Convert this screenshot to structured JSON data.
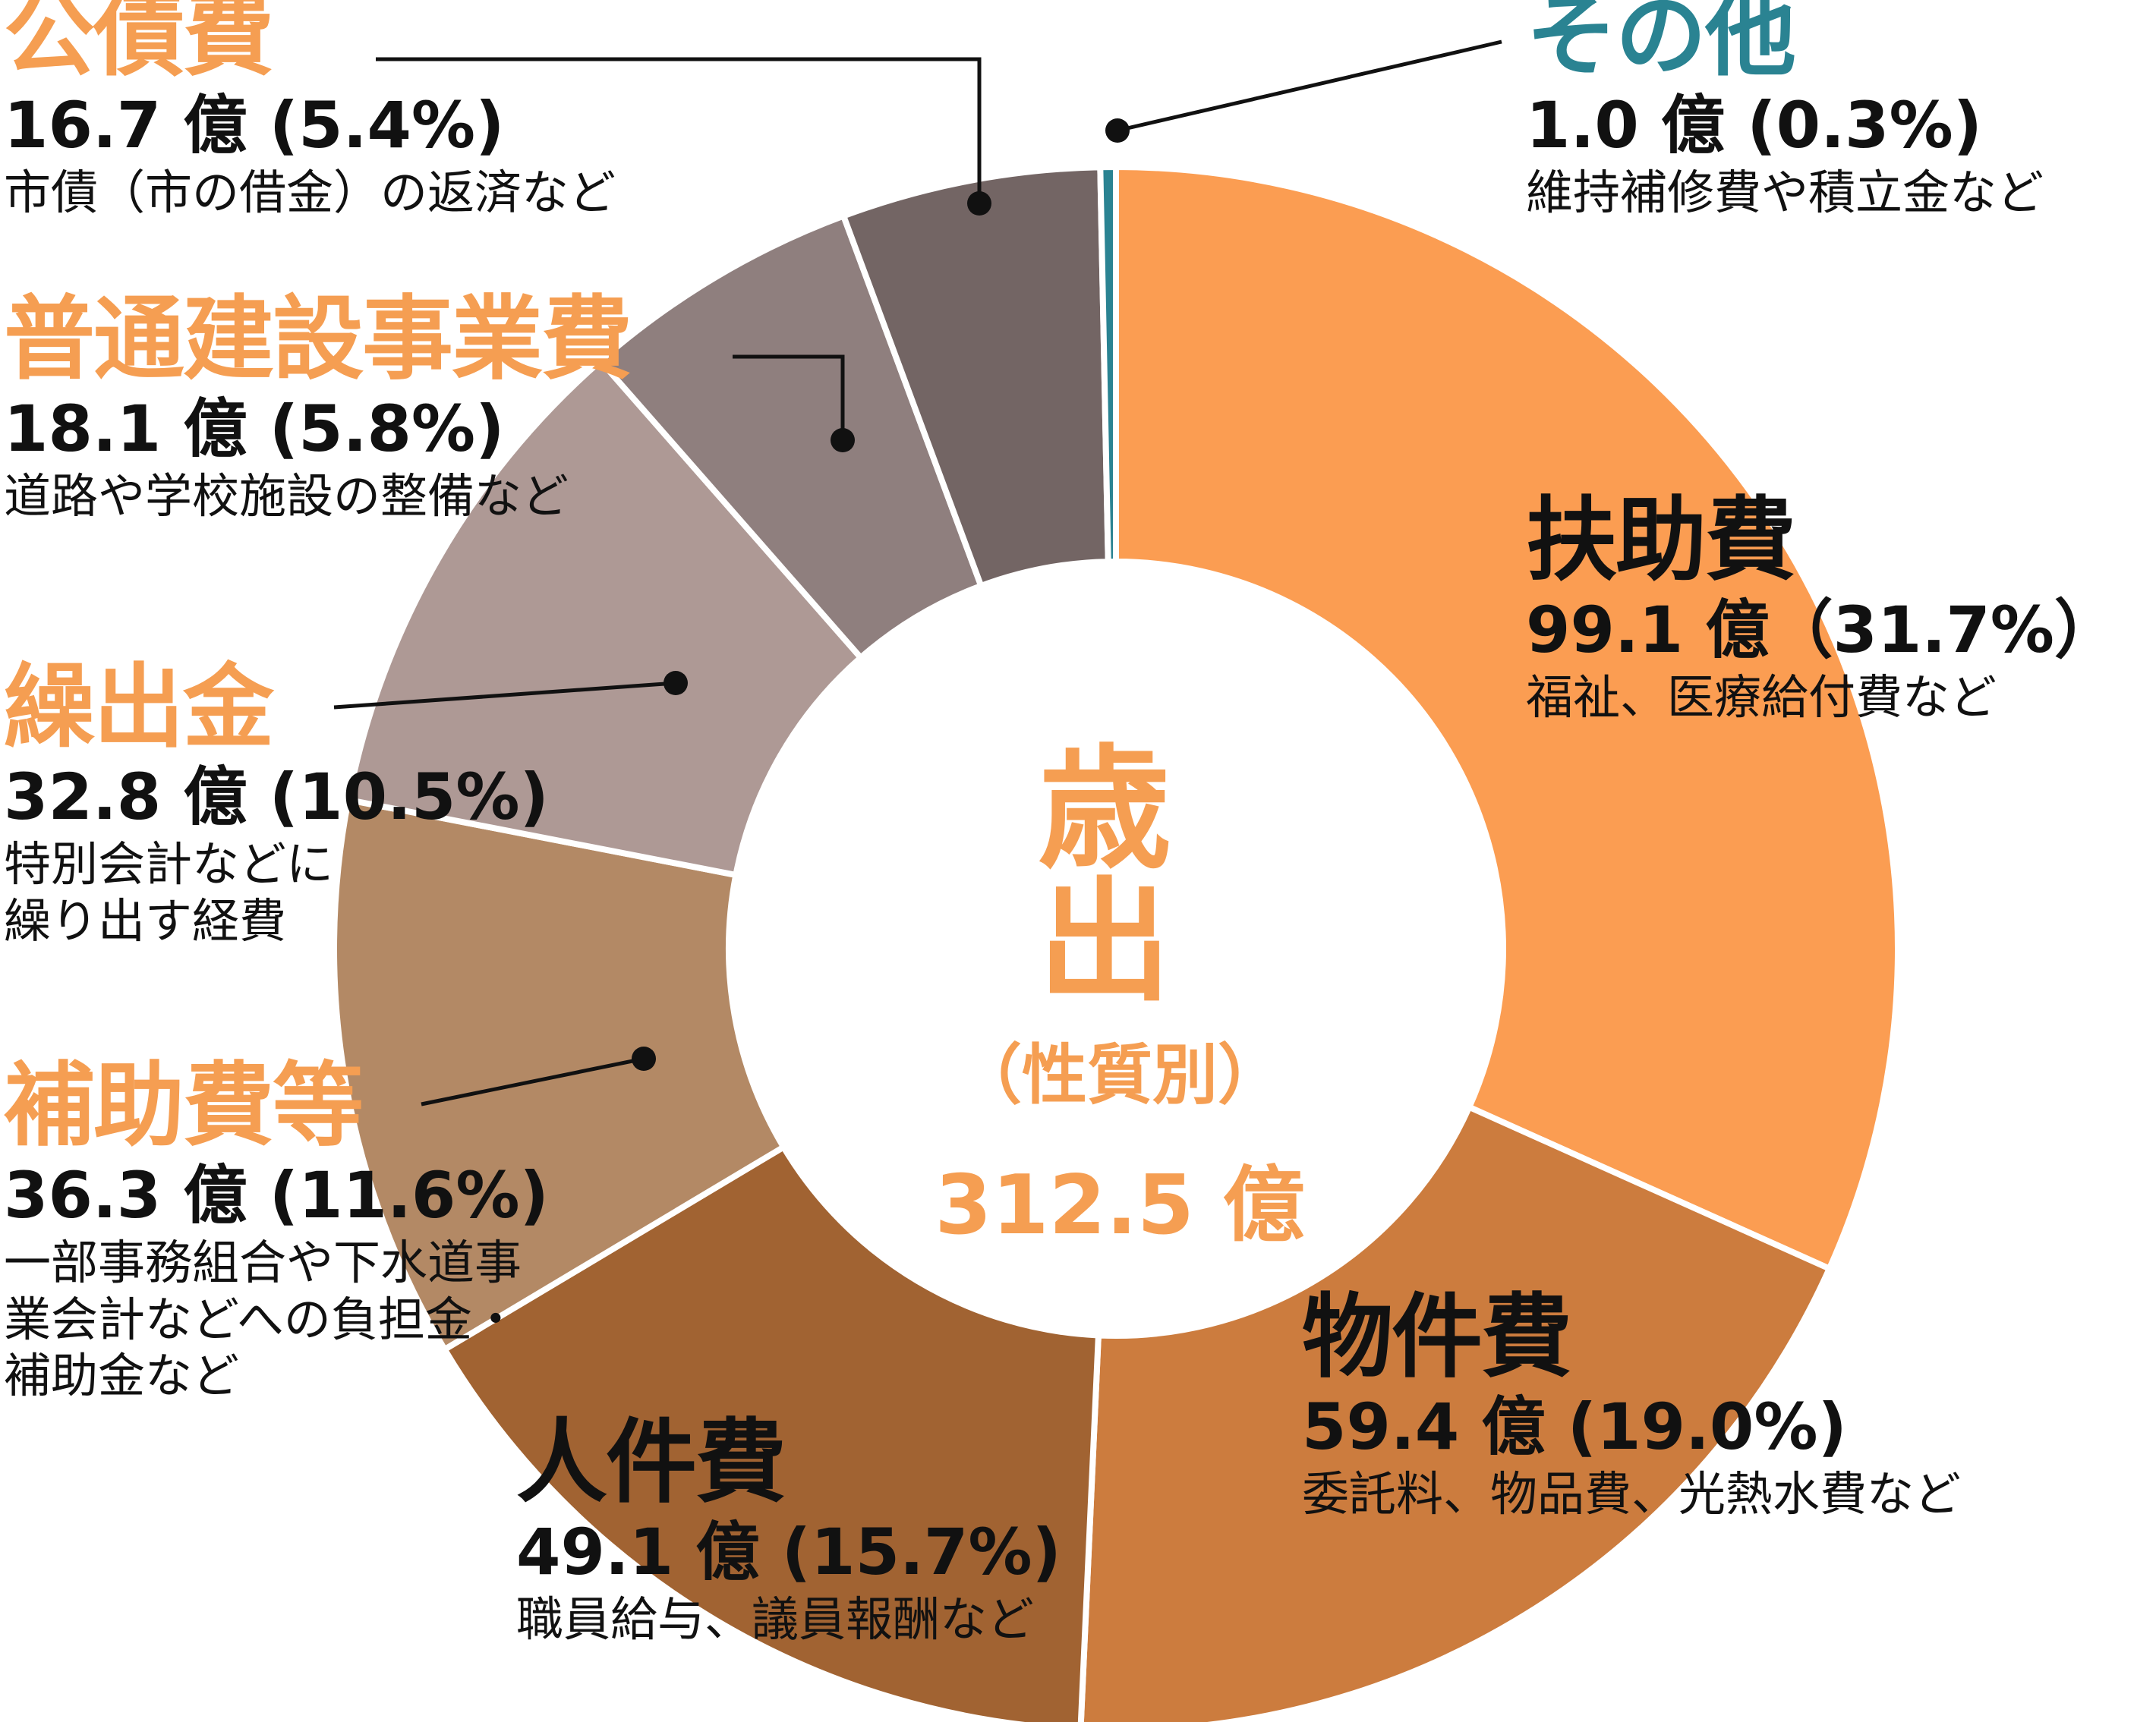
{
  "chart_data": {
    "type": "pie",
    "donut": true,
    "title": "歳 出",
    "subtitle": "（性質別）",
    "total_label": "312.5 億",
    "slices": [
      {
        "name": "扶助費",
        "value": 99.1,
        "percent": 31.7,
        "amount_label": "99.1 億（31.7%）",
        "description": [
          "福祉、医療給付費など"
        ],
        "color": "#fb9d52",
        "label_color": "#111111"
      },
      {
        "name": "物件費",
        "value": 59.4,
        "percent": 19.0,
        "amount_label": "59.4 億 (19.0%)",
        "description": [
          "委託料、物品費、光熱水費など"
        ],
        "color": "#cc7c3e",
        "label_color": "#111111"
      },
      {
        "name": "人件費",
        "value": 49.1,
        "percent": 15.7,
        "amount_label": "49.1 億 (15.7%)",
        "description": [
          "職員給与、議員報酬など"
        ],
        "color": "#a16332",
        "label_color": "#111111"
      },
      {
        "name": "補助費等",
        "value": 36.3,
        "percent": 11.6,
        "amount_label": "36.3 億 (11.6%)",
        "description": [
          "一部事務組合や下水道事",
          "業会計などへの負担金・",
          "補助金など"
        ],
        "color": "#b38965",
        "label_color": "#f59e52"
      },
      {
        "name": "繰出金",
        "value": 32.8,
        "percent": 10.5,
        "amount_label": "32.8 億 (10.5%)",
        "description": [
          "特別会計などに",
          "繰り出す経費"
        ],
        "color": "#ae9995",
        "label_color": "#f59e52"
      },
      {
        "name": "普通建設事業費",
        "value": 18.1,
        "percent": 5.8,
        "amount_label": "18.1 億 (5.8%)",
        "description": [
          "道路や学校施設の整備など"
        ],
        "color": "#8f7f7e",
        "label_color": "#f59e52"
      },
      {
        "name": "公債費",
        "value": 16.7,
        "percent": 5.4,
        "amount_label": "16.7 億 (5.4%)",
        "description": [
          "市債（市の借金）の返済など"
        ],
        "color": "#736564",
        "label_color": "#f59e52"
      },
      {
        "name": "その他",
        "value": 1.0,
        "percent": 0.3,
        "amount_label": "1.0 億 (0.3%)",
        "description": [
          "維持補修費や積立金など"
        ],
        "color": "#2a8392",
        "label_color": "#2a8392"
      }
    ]
  }
}
